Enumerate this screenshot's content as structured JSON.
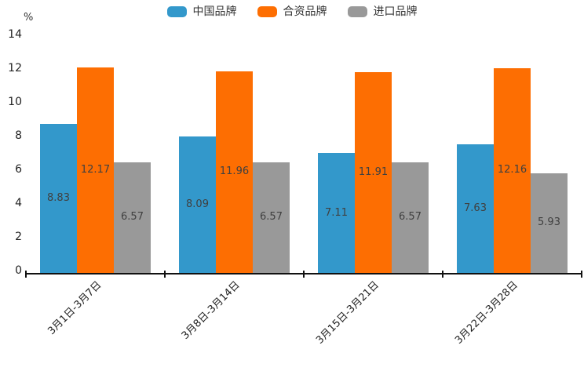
{
  "chart_data": {
    "type": "bar",
    "title": "",
    "unit_label": "%",
    "categories": [
      "3月1日-3月7日",
      "3月8日-3月14日",
      "3月15日-3月21日",
      "3月22日-3月28日"
    ],
    "series": [
      {
        "name": "中国品牌",
        "color": "#3398cb",
        "values": [
          8.83,
          8.09,
          7.11,
          7.63
        ]
      },
      {
        "name": "合资品牌",
        "color": "#fd6e02",
        "values": [
          12.17,
          11.96,
          11.91,
          12.16
        ]
      },
      {
        "name": "进口品牌",
        "color": "#999999",
        "values": [
          6.57,
          6.57,
          6.57,
          5.93
        ]
      }
    ],
    "ylim": [
      0,
      14
    ],
    "y_ticks": [
      0,
      2,
      4,
      6,
      8,
      10,
      12,
      14
    ],
    "grid": false,
    "legend_position": "top",
    "value_labels": "inside-center",
    "axis_color": "#111111",
    "label_color": "#404040"
  }
}
